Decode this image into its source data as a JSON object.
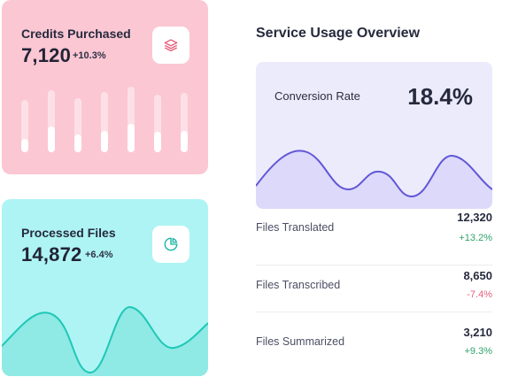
{
  "credits": {
    "title": "Credits Purchased",
    "value": "7,120",
    "delta": "+10.3%",
    "icon": "layers-icon",
    "bars": [
      {
        "total": 0.78,
        "filled": 0.2
      },
      {
        "total": 0.92,
        "filled": 0.38
      },
      {
        "total": 0.8,
        "filled": 0.26
      },
      {
        "total": 0.9,
        "filled": 0.32
      },
      {
        "total": 0.97,
        "filled": 0.42
      },
      {
        "total": 0.86,
        "filled": 0.3
      },
      {
        "total": 0.88,
        "filled": 0.32
      }
    ],
    "accent": "#fbc7d3",
    "icon_color": "#e5607d"
  },
  "files": {
    "title": "Processed Files",
    "value": "14,872",
    "delta": "+6.4%",
    "icon": "pie-chart-icon",
    "accent": "#aef4f4",
    "line_color": "#1fc7b6"
  },
  "overview": {
    "title": "Service Usage Overview",
    "conversion": {
      "label": "Conversion Rate",
      "value": "18.4%",
      "line_color": "#6257d6",
      "fill_color": "#dcd9fa"
    },
    "rows": [
      {
        "label": "Files Translated",
        "value": "12,320",
        "delta": "+13.2%",
        "trend": "pos"
      },
      {
        "label": "Files Transcribed",
        "value": "8,650",
        "delta": "-7.4%",
        "trend": "neg"
      },
      {
        "label": "Files Summarized",
        "value": "3,210",
        "delta": "+9.3%",
        "trend": "pos"
      }
    ]
  }
}
